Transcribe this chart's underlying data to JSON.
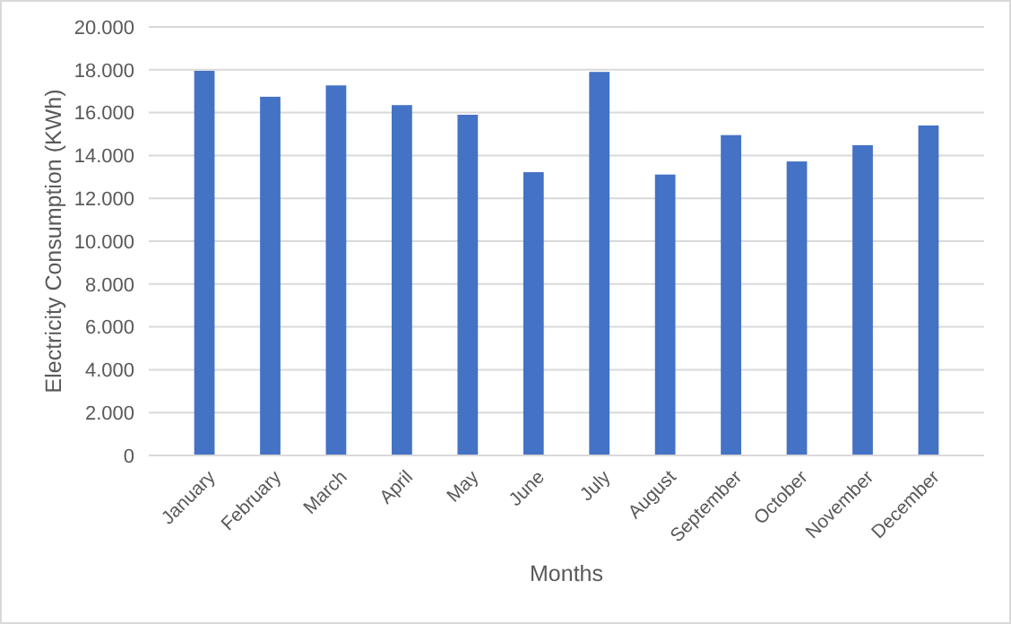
{
  "chart_data": {
    "type": "bar",
    "xlabel": "Months",
    "ylabel": "Electricity Consumption (KWh)",
    "categories": [
      "January",
      "February",
      "March",
      "April",
      "May",
      "June",
      "July",
      "August",
      "September",
      "October",
      "November",
      "December"
    ],
    "values": [
      17950,
      16740,
      17270,
      16350,
      15900,
      13220,
      17900,
      13110,
      14950,
      13720,
      14480,
      15400
    ],
    "color": "#4472c4",
    "ylim": [
      0,
      20000
    ],
    "yticks": [
      {
        "value": 0,
        "label": "0"
      },
      {
        "value": 2000,
        "label": "2.000"
      },
      {
        "value": 4000,
        "label": "4.000"
      },
      {
        "value": 6000,
        "label": "6.000"
      },
      {
        "value": 8000,
        "label": "8.000"
      },
      {
        "value": 10000,
        "label": "10.000"
      },
      {
        "value": 12000,
        "label": "12.000"
      },
      {
        "value": 14000,
        "label": "14.000"
      },
      {
        "value": 16000,
        "label": "16.000"
      },
      {
        "value": 18000,
        "label": "18.000"
      },
      {
        "value": 20000,
        "label": "20.000"
      }
    ],
    "grid": "y"
  }
}
